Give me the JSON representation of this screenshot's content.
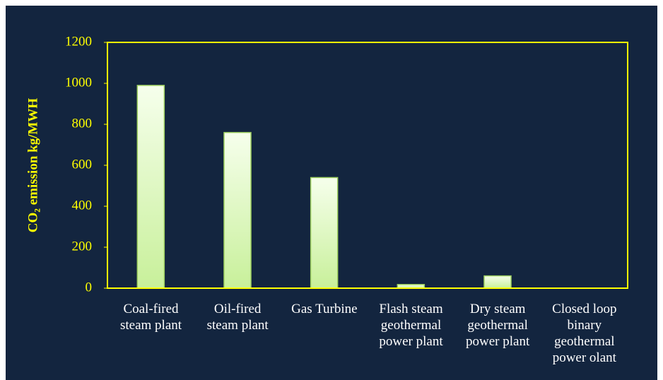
{
  "chart_data": {
    "type": "bar",
    "y_label": "CO₂ emission kg/MWH",
    "categories": [
      "Coal-fired\nsteam plant",
      "Oil-fired\nsteam plant",
      "Gas Turbine",
      "Flash steam\ngeothermal\npower plant",
      "Dry steam\ngeothermal\npower plant",
      "Closed loop\nbinary\ngeothermal\npower olant"
    ],
    "values": [
      990,
      760,
      540,
      18,
      60,
      0
    ],
    "color": "#c8f09a",
    "ylim": [
      0,
      1200
    ],
    "yticks": [
      0,
      200,
      400,
      600,
      800,
      1000,
      1200
    ],
    "grid": false
  }
}
